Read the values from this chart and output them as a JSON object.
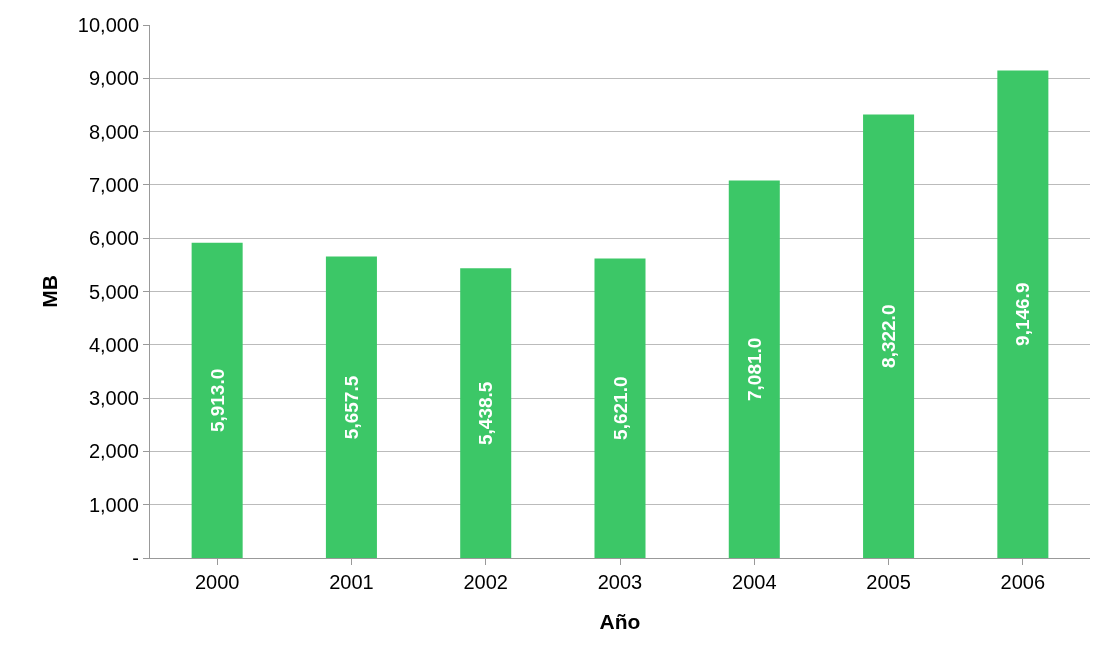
{
  "chart_data": {
    "type": "bar",
    "xlabel": "Año",
    "ylabel": "MB",
    "categories": [
      "2000",
      "2001",
      "2002",
      "2003",
      "2004",
      "2005",
      "2006"
    ],
    "values": [
      5913.0,
      5657.5,
      5438.5,
      5621.0,
      7081.0,
      8322.0,
      9146.9
    ],
    "value_labels": [
      "5,913.0",
      "5,657.5",
      "5,438.5",
      "5,621.0",
      "7,081.0",
      "8,322.0",
      "9,146.9"
    ],
    "color": "#3cc767",
    "ylim": [
      0,
      10000
    ],
    "yticks": [
      {
        "value": 0,
        "label": "-"
      },
      {
        "value": 1000,
        "label": "1,000"
      },
      {
        "value": 2000,
        "label": "2,000"
      },
      {
        "value": 3000,
        "label": "3,000"
      },
      {
        "value": 4000,
        "label": "4,000"
      },
      {
        "value": 5000,
        "label": "5,000"
      },
      {
        "value": 6000,
        "label": "6,000"
      },
      {
        "value": 7000,
        "label": "7,000"
      },
      {
        "value": 8000,
        "label": "8,000"
      },
      {
        "value": 9000,
        "label": "9,000"
      },
      {
        "value": 10000,
        "label": "10,000"
      }
    ],
    "grid": "y"
  }
}
